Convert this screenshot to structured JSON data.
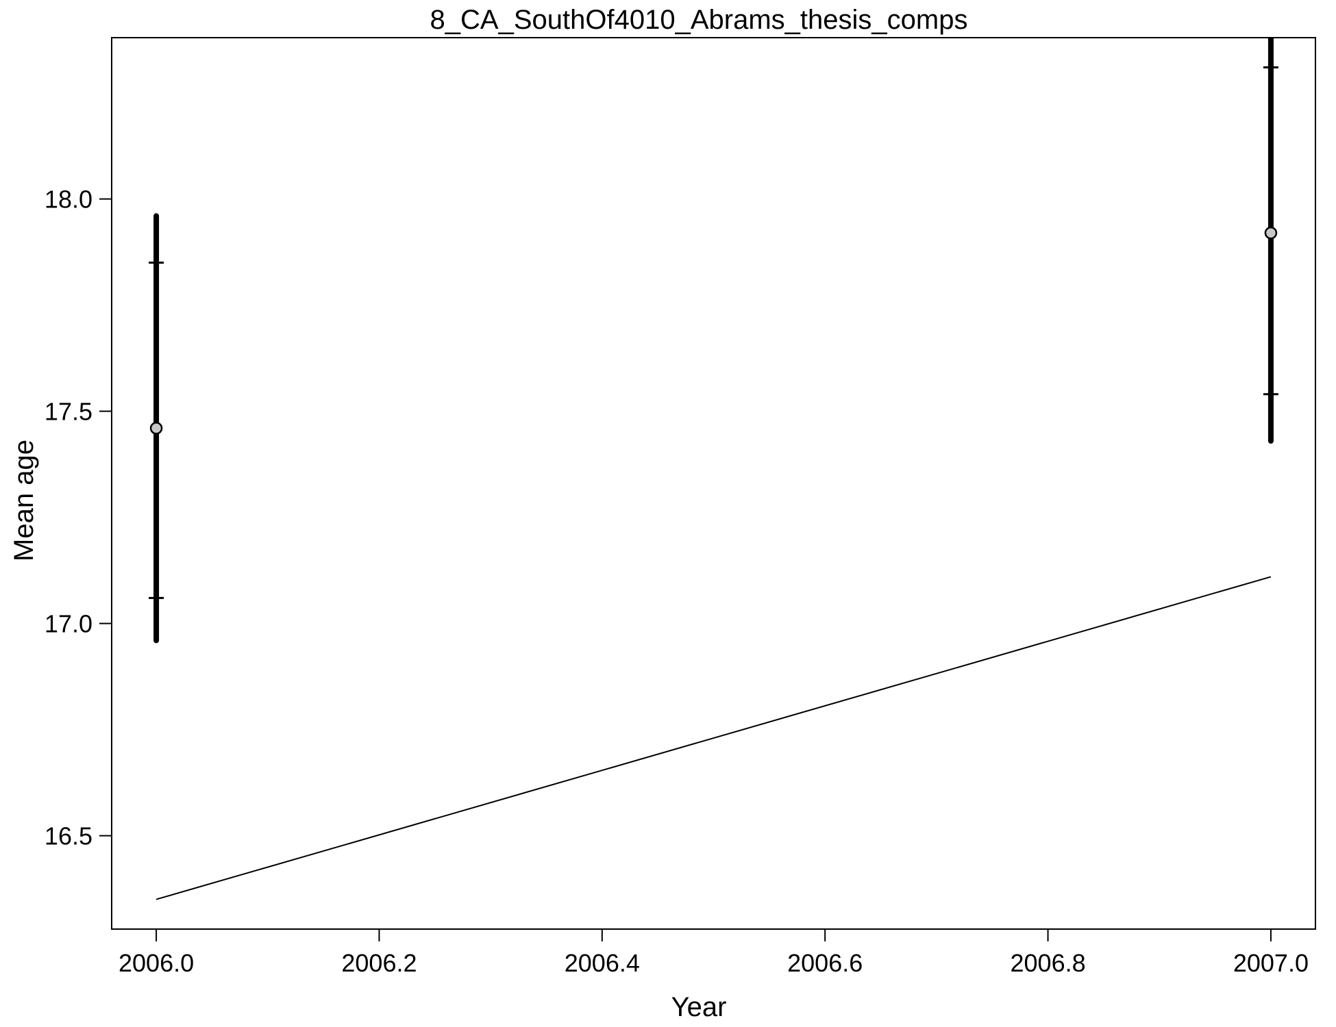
{
  "chart_data": {
    "type": "scatter",
    "title": "8_CA_SouthOf4010_Abrams_thesis_comps",
    "xlabel": "Year",
    "ylabel": "Mean age",
    "xlim": [
      1995.9,
      2007.1
    ],
    "ylim": [
      16.27,
      18.38
    ],
    "x_ticks": [
      2006.0,
      2006.2,
      2006.4,
      2006.6,
      2006.8,
      2007.0
    ],
    "x_tick_labels": [
      "2006.0",
      "2006.2",
      "2006.4",
      "2006.6",
      "2006.8",
      "2007.0"
    ],
    "y_ticks": [
      16.5,
      17.0,
      17.5,
      18.0
    ],
    "y_tick_labels": [
      "16.5",
      "17.0",
      "17.5",
      "18.0"
    ],
    "grid": false,
    "series": [
      {
        "type": "points",
        "x": [
          2006.0,
          2007.0
        ],
        "y": [
          17.46,
          17.92
        ],
        "lower_outer": [
          16.96,
          17.43
        ],
        "upper_outer": [
          17.96,
          18.41
        ],
        "lower_inner": [
          17.06,
          17.54
        ],
        "upper_inner": [
          17.85,
          18.31
        ],
        "point_fill": "#c8c8c8"
      },
      {
        "type": "line",
        "x": [
          2006.0,
          2007.0
        ],
        "y": [
          16.35,
          17.11
        ]
      }
    ]
  }
}
